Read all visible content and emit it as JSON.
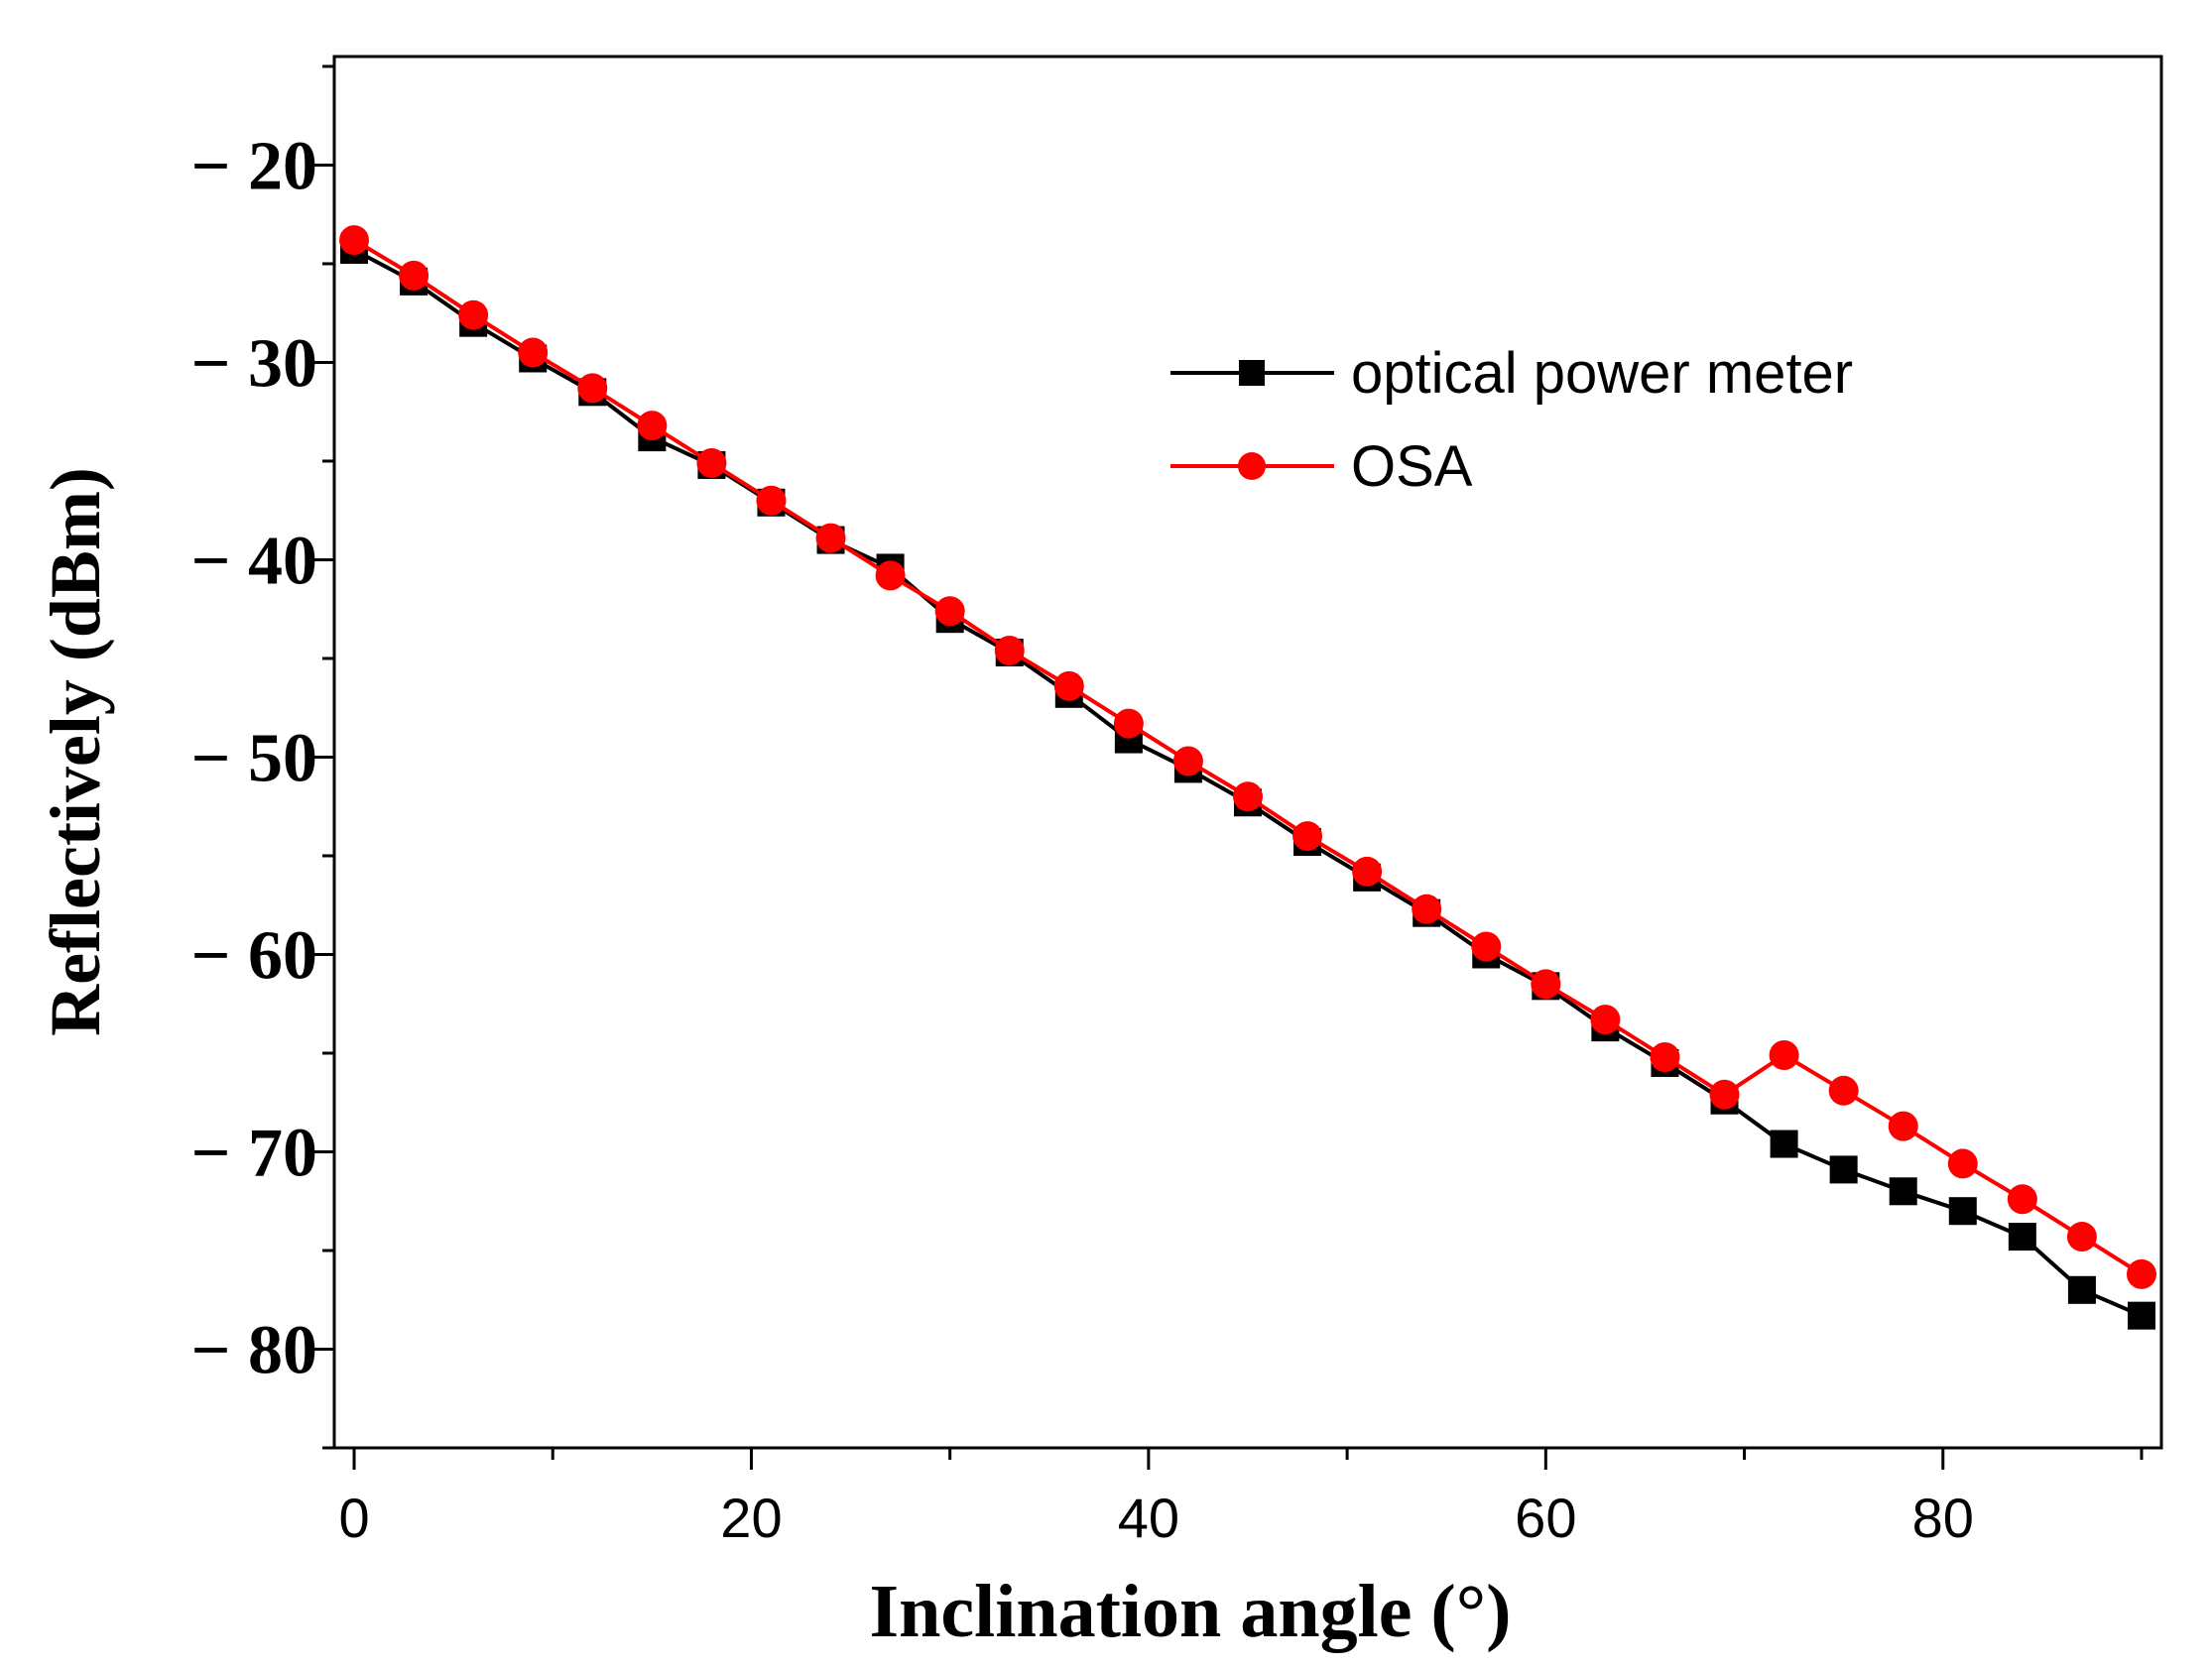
{
  "chart_data": {
    "type": "line",
    "title": "",
    "xlabel": "Inclination angle (°)",
    "ylabel": "Reflectively (dBm)",
    "xlim": [
      -1,
      91
    ],
    "ylim": [
      -85.0,
      -14.5
    ],
    "x_ticks": [
      0,
      20,
      40,
      60,
      80
    ],
    "x_tick_labels": [
      "0",
      "20",
      "40",
      "60",
      "80"
    ],
    "y_ticks": [
      -20,
      -30,
      -40,
      -50,
      -60,
      -70,
      -80
    ],
    "y_tick_labels": [
      "− 20",
      "− 30",
      "− 40",
      "− 50",
      "− 60",
      "− 70",
      "− 80"
    ],
    "legend_position": "top-right",
    "x": [
      0,
      3,
      6,
      9,
      12,
      15,
      18,
      21,
      24,
      27,
      30,
      33,
      36,
      39,
      42,
      45,
      48,
      51,
      54,
      57,
      60,
      63,
      66,
      69,
      72,
      75,
      78,
      81,
      84,
      87,
      90
    ],
    "series": [
      {
        "name": "optical power meter",
        "color": "#000000",
        "marker": "square",
        "values": [
          -24.3,
          -25.9,
          -28.0,
          -29.8,
          -31.5,
          -33.8,
          -35.2,
          -37.1,
          -39.0,
          -40.4,
          -43.0,
          -44.7,
          -46.8,
          -49.1,
          -50.6,
          -52.3,
          -54.3,
          -56.1,
          -57.9,
          -60.0,
          -61.6,
          -63.7,
          -65.5,
          -67.4,
          -69.6,
          -70.9,
          -72.0,
          -73.0,
          -74.3,
          -77.0,
          -78.3
        ]
      },
      {
        "name": "OSA",
        "color": "#ff0000",
        "marker": "circle",
        "values": [
          -23.8,
          -25.6,
          -27.6,
          -29.5,
          -31.3,
          -33.2,
          -35.1,
          -37.0,
          -38.9,
          -40.8,
          -42.6,
          -44.6,
          -46.4,
          -48.3,
          -50.2,
          -52.0,
          -54.0,
          -55.8,
          -57.7,
          -59.6,
          -61.5,
          -63.3,
          -65.2,
          -67.1,
          -65.1,
          -66.9,
          -68.7,
          -70.6,
          -72.4,
          -74.3,
          -76.2
        ]
      }
    ]
  }
}
